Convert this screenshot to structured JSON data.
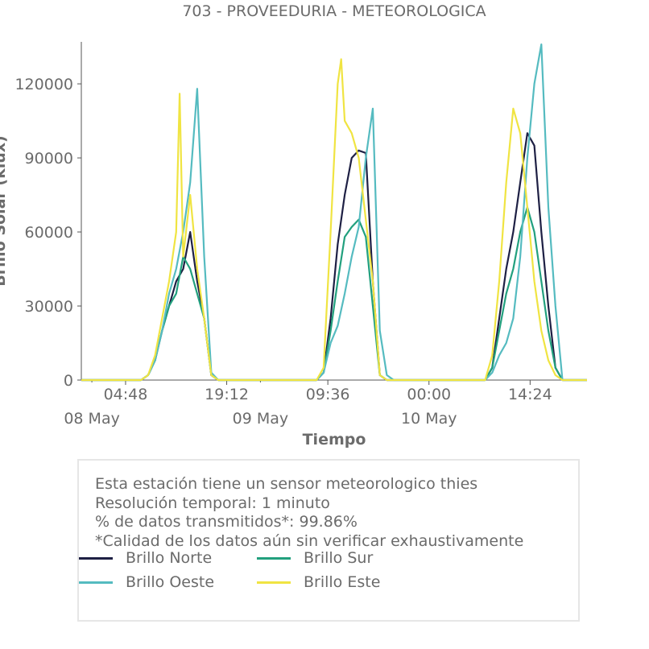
{
  "chart_data": {
    "type": "line",
    "title": "703 - PROVEEDURIA - METEOROLOGICA",
    "xlabel": "Tiempo",
    "ylabel": "Brillo Solar (klux)",
    "ylim": [
      0,
      137000
    ],
    "yticks": [
      0,
      30000,
      60000,
      90000,
      120000
    ],
    "ytick_labels": [
      "0",
      "30000",
      "60000",
      "90000",
      "120000"
    ],
    "xlim_hours": [
      -1.5,
      70.5
    ],
    "xticks": [
      {
        "hour": 4.8,
        "label": "04:48",
        "date": "08 May"
      },
      {
        "hour": 19.2,
        "label": "19:12",
        "date": ""
      },
      {
        "hour": 33.6,
        "label": "09:36",
        "date": "09 May"
      },
      {
        "hour": 48.0,
        "label": "00:00",
        "date": "10 May"
      },
      {
        "hour": 62.4,
        "label": "14:24",
        "date": ""
      }
    ],
    "minor_xticks_hours": [
      0,
      24
    ],
    "series": [
      {
        "name": "Brillo Norte",
        "color": "#1e2044",
        "points": [
          [
            -1.5,
            0
          ],
          [
            7,
            0
          ],
          [
            8,
            2000
          ],
          [
            9,
            8000
          ],
          [
            10,
            20000
          ],
          [
            11,
            30000
          ],
          [
            12,
            40000
          ],
          [
            13,
            45000
          ],
          [
            14,
            60000
          ],
          [
            15,
            40000
          ],
          [
            16,
            25000
          ],
          [
            17,
            2000
          ],
          [
            18,
            0
          ],
          [
            32,
            0
          ],
          [
            33,
            3000
          ],
          [
            34,
            25000
          ],
          [
            35,
            55000
          ],
          [
            36,
            75000
          ],
          [
            37,
            90000
          ],
          [
            38,
            93000
          ],
          [
            39,
            92000
          ],
          [
            40,
            40000
          ],
          [
            41,
            2000
          ],
          [
            42,
            0
          ],
          [
            56,
            0
          ],
          [
            57,
            5000
          ],
          [
            58,
            25000
          ],
          [
            59,
            45000
          ],
          [
            60,
            60000
          ],
          [
            61,
            80000
          ],
          [
            62,
            100000
          ],
          [
            63,
            95000
          ],
          [
            64,
            60000
          ],
          [
            65,
            30000
          ],
          [
            66,
            5000
          ],
          [
            67,
            0
          ],
          [
            70.5,
            0
          ]
        ]
      },
      {
        "name": "Brillo Sur",
        "color": "#22a07e",
        "points": [
          [
            -1.5,
            0
          ],
          [
            7,
            0
          ],
          [
            8,
            2000
          ],
          [
            9,
            8000
          ],
          [
            10,
            20000
          ],
          [
            11,
            30000
          ],
          [
            12,
            35000
          ],
          [
            13,
            50000
          ],
          [
            14,
            45000
          ],
          [
            15,
            35000
          ],
          [
            16,
            25000
          ],
          [
            17,
            2000
          ],
          [
            18,
            0
          ],
          [
            32,
            0
          ],
          [
            33,
            3000
          ],
          [
            34,
            20000
          ],
          [
            35,
            40000
          ],
          [
            36,
            58000
          ],
          [
            37,
            62000
          ],
          [
            38,
            65000
          ],
          [
            39,
            58000
          ],
          [
            40,
            30000
          ],
          [
            41,
            2000
          ],
          [
            42,
            0
          ],
          [
            56,
            0
          ],
          [
            57,
            5000
          ],
          [
            58,
            20000
          ],
          [
            59,
            35000
          ],
          [
            60,
            45000
          ],
          [
            61,
            60000
          ],
          [
            62,
            70000
          ],
          [
            63,
            60000
          ],
          [
            64,
            40000
          ],
          [
            65,
            20000
          ],
          [
            66,
            5000
          ],
          [
            67,
            0
          ],
          [
            70.5,
            0
          ]
        ]
      },
      {
        "name": "Brillo Oeste",
        "color": "#55bbc0",
        "points": [
          [
            -1.5,
            0
          ],
          [
            7,
            0
          ],
          [
            8,
            2000
          ],
          [
            9,
            8000
          ],
          [
            10,
            20000
          ],
          [
            11,
            35000
          ],
          [
            12,
            45000
          ],
          [
            13,
            60000
          ],
          [
            14,
            80000
          ],
          [
            15,
            118000
          ],
          [
            16,
            50000
          ],
          [
            17,
            3000
          ],
          [
            18,
            0
          ],
          [
            32,
            0
          ],
          [
            33,
            3000
          ],
          [
            34,
            15000
          ],
          [
            35,
            22000
          ],
          [
            36,
            35000
          ],
          [
            37,
            50000
          ],
          [
            38,
            62000
          ],
          [
            39,
            90000
          ],
          [
            40,
            110000
          ],
          [
            41,
            20000
          ],
          [
            42,
            2000
          ],
          [
            43,
            0
          ],
          [
            56,
            0
          ],
          [
            57,
            3000
          ],
          [
            58,
            10000
          ],
          [
            59,
            15000
          ],
          [
            60,
            25000
          ],
          [
            61,
            50000
          ],
          [
            62,
            90000
          ],
          [
            63,
            120000
          ],
          [
            64,
            136000
          ],
          [
            65,
            70000
          ],
          [
            66,
            30000
          ],
          [
            67,
            0
          ],
          [
            70.5,
            0
          ]
        ]
      },
      {
        "name": "Brillo Este",
        "color": "#f0e442",
        "points": [
          [
            -1.5,
            0
          ],
          [
            7,
            0
          ],
          [
            8,
            2000
          ],
          [
            9,
            10000
          ],
          [
            10,
            25000
          ],
          [
            11,
            40000
          ],
          [
            12,
            60000
          ],
          [
            12.5,
            116000
          ],
          [
            13,
            50000
          ],
          [
            14,
            75000
          ],
          [
            15,
            45000
          ],
          [
            16,
            25000
          ],
          [
            17,
            2000
          ],
          [
            18,
            0
          ],
          [
            32,
            0
          ],
          [
            33,
            5000
          ],
          [
            34,
            60000
          ],
          [
            35,
            120000
          ],
          [
            35.5,
            130000
          ],
          [
            36,
            105000
          ],
          [
            37,
            100000
          ],
          [
            38,
            90000
          ],
          [
            39,
            65000
          ],
          [
            40,
            40000
          ],
          [
            41,
            2000
          ],
          [
            42,
            0
          ],
          [
            56,
            0
          ],
          [
            57,
            10000
          ],
          [
            58,
            40000
          ],
          [
            59,
            80000
          ],
          [
            60,
            110000
          ],
          [
            61,
            100000
          ],
          [
            62,
            70000
          ],
          [
            63,
            40000
          ],
          [
            64,
            20000
          ],
          [
            65,
            8000
          ],
          [
            66,
            2000
          ],
          [
            67,
            0
          ],
          [
            70.5,
            0
          ]
        ]
      }
    ]
  },
  "info": {
    "line1": "Esta estación tiene un sensor meteorologico thies",
    "line2": "Resolución temporal: 1 minuto",
    "line3": "% de datos transmitidos*: 99.86%",
    "line4": "*Calidad de los datos aún sin verificar exhaustivamente"
  },
  "legend": [
    {
      "label": "Brillo Norte",
      "color": "#1e2044"
    },
    {
      "label": "Brillo Sur",
      "color": "#22a07e"
    },
    {
      "label": "Brillo Oeste",
      "color": "#55bbc0"
    },
    {
      "label": "Brillo Este",
      "color": "#f0e442"
    }
  ]
}
